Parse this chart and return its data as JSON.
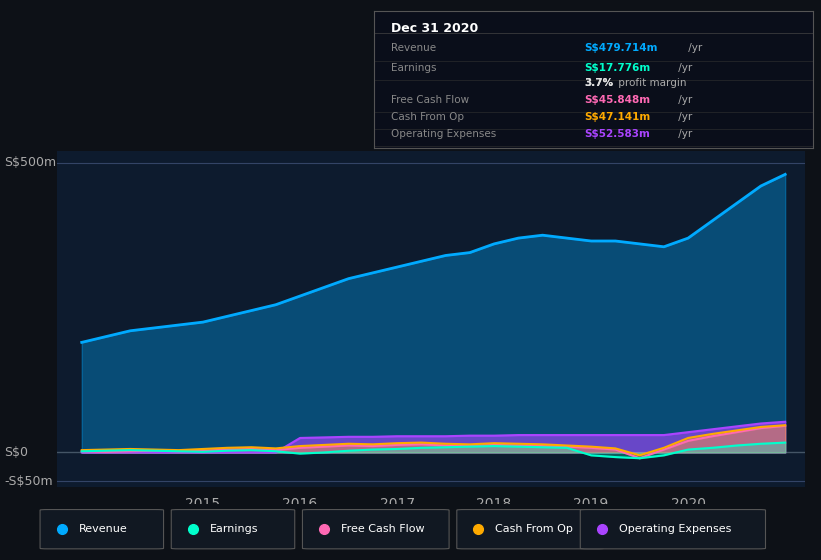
{
  "bg_color": "#0d1117",
  "plot_bg_color": "#0d1b2e",
  "ylabel_top": "S$500m",
  "ylabel_zero": "S$0",
  "ylabel_neg": "-S$50m",
  "x_ticks": [
    2015,
    2016,
    2017,
    2018,
    2019,
    2020
  ],
  "x_min": 2013.5,
  "x_max": 2021.2,
  "y_min": -60,
  "y_max": 520,
  "revenue_color": "#00aaff",
  "earnings_color": "#00ffcc",
  "fcf_color": "#ff69b4",
  "cashfromop_color": "#ffaa00",
  "opex_color": "#aa44ff",
  "legend_items": [
    "Revenue",
    "Earnings",
    "Free Cash Flow",
    "Cash From Op",
    "Operating Expenses"
  ],
  "table_header": "Dec 31 2020",
  "revenue_x": [
    2013.75,
    2014.0,
    2014.25,
    2014.5,
    2014.75,
    2015.0,
    2015.25,
    2015.5,
    2015.75,
    2016.0,
    2016.25,
    2016.5,
    2016.75,
    2017.0,
    2017.25,
    2017.5,
    2017.75,
    2018.0,
    2018.25,
    2018.5,
    2018.75,
    2019.0,
    2019.25,
    2019.5,
    2019.75,
    2020.0,
    2020.25,
    2020.5,
    2020.75,
    2021.0
  ],
  "revenue_y": [
    190,
    200,
    210,
    215,
    220,
    225,
    235,
    245,
    255,
    270,
    285,
    300,
    310,
    320,
    330,
    340,
    345,
    360,
    370,
    375,
    370,
    365,
    365,
    360,
    355,
    370,
    400,
    430,
    460,
    480
  ],
  "earnings_x": [
    2013.75,
    2014.0,
    2014.25,
    2014.5,
    2014.75,
    2015.0,
    2015.25,
    2015.5,
    2015.75,
    2016.0,
    2016.25,
    2016.5,
    2016.75,
    2017.0,
    2017.25,
    2017.5,
    2017.75,
    2018.0,
    2018.25,
    2018.5,
    2018.75,
    2019.0,
    2019.25,
    2019.5,
    2019.75,
    2020.0,
    2020.25,
    2020.5,
    2020.75,
    2021.0
  ],
  "earnings_y": [
    2,
    3,
    4,
    3,
    2,
    1,
    3,
    4,
    2,
    -2,
    0,
    3,
    5,
    6,
    8,
    9,
    10,
    11,
    10,
    9,
    8,
    -5,
    -8,
    -10,
    -5,
    5,
    8,
    12,
    15,
    17
  ],
  "fcf_x": [
    2013.75,
    2014.0,
    2014.25,
    2014.5,
    2014.75,
    2015.0,
    2015.25,
    2015.5,
    2015.75,
    2016.0,
    2016.25,
    2016.5,
    2016.75,
    2017.0,
    2017.25,
    2017.5,
    2017.75,
    2018.0,
    2018.25,
    2018.5,
    2018.75,
    2019.0,
    2019.25,
    2019.5,
    2019.75,
    2020.0,
    2020.25,
    2020.5,
    2020.75,
    2021.0
  ],
  "fcf_y": [
    2,
    1,
    2,
    3,
    2,
    3,
    5,
    6,
    4,
    8,
    10,
    12,
    11,
    13,
    14,
    12,
    11,
    13,
    12,
    11,
    10,
    8,
    5,
    -10,
    5,
    20,
    28,
    35,
    42,
    46
  ],
  "cashfromop_x": [
    2013.75,
    2014.0,
    2014.25,
    2014.5,
    2014.75,
    2015.0,
    2015.25,
    2015.5,
    2015.75,
    2016.0,
    2016.25,
    2016.5,
    2016.75,
    2017.0,
    2017.25,
    2017.5,
    2017.75,
    2018.0,
    2018.25,
    2018.5,
    2018.75,
    2019.0,
    2019.25,
    2019.5,
    2019.75,
    2020.0,
    2020.25,
    2020.5,
    2020.75,
    2021.0
  ],
  "cashfromop_y": [
    4,
    5,
    6,
    5,
    4,
    6,
    8,
    9,
    7,
    11,
    13,
    15,
    14,
    16,
    17,
    15,
    14,
    16,
    15,
    14,
    12,
    10,
    7,
    -5,
    8,
    25,
    32,
    38,
    44,
    47
  ],
  "opex_x": [
    2013.75,
    2014.0,
    2014.25,
    2014.5,
    2014.75,
    2015.0,
    2015.25,
    2015.5,
    2015.75,
    2016.0,
    2016.25,
    2016.5,
    2016.75,
    2017.0,
    2017.25,
    2017.5,
    2017.75,
    2018.0,
    2018.25,
    2018.5,
    2018.75,
    2019.0,
    2019.25,
    2019.5,
    2019.75,
    2020.0,
    2020.25,
    2020.5,
    2020.75,
    2021.0
  ],
  "opex_y": [
    0,
    0,
    0,
    0,
    0,
    0,
    0,
    0,
    0,
    25,
    26,
    27,
    27,
    28,
    28,
    28,
    29,
    29,
    30,
    30,
    30,
    30,
    30,
    30,
    30,
    35,
    40,
    45,
    50,
    53
  ]
}
